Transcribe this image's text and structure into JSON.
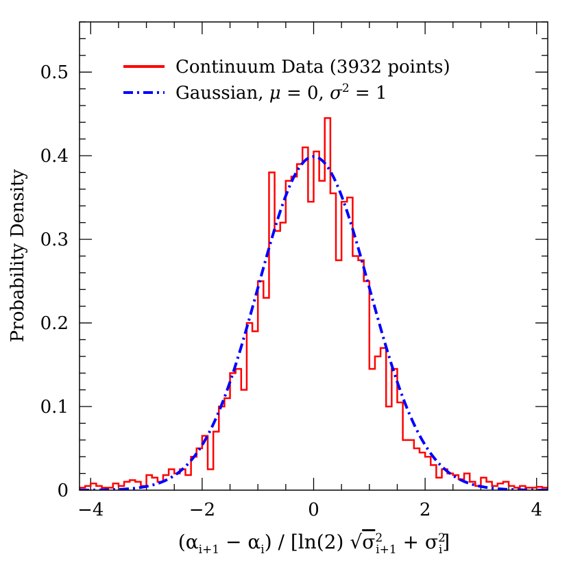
{
  "chart_data": {
    "type": "histogram",
    "xlabel_parts": {
      "open": "(α",
      "sub_i1": "i+1",
      "minus": " − α",
      "sub_i": "i",
      "mid": ") / [ln(2) ",
      "sqrt": "√",
      "sigma1": "σ",
      "sup_2a": "2",
      "sub_i1b": "i+1",
      "plus": " + σ",
      "sup_2b": "2",
      "sub_ib": "i",
      "close": "]"
    },
    "ylabel": "Probability Density",
    "xlim": [
      -4.2,
      4.2
    ],
    "ylim": [
      0,
      0.56
    ],
    "x_ticks": [
      -4,
      -2,
      0,
      2,
      4
    ],
    "x_tick_labels": [
      "−4",
      "−2",
      "0",
      "2",
      "4"
    ],
    "y_ticks": [
      0,
      0.1,
      0.2,
      0.3,
      0.4,
      0.5
    ],
    "y_tick_labels": [
      "0",
      "0.1",
      "0.2",
      "0.3",
      "0.4",
      "0.5"
    ],
    "legend_position": "top-left",
    "series": [
      {
        "name": "Continuum Data (3932 points)",
        "kind": "histogram",
        "color": "#ff0000",
        "bin_edges": [
          -4.2,
          -4.1,
          -4.0,
          -3.9,
          -3.8,
          -3.7,
          -3.6,
          -3.5,
          -3.4,
          -3.3,
          -3.2,
          -3.1,
          -3.0,
          -2.9,
          -2.8,
          -2.7,
          -2.6,
          -2.5,
          -2.4,
          -2.3,
          -2.2,
          -2.1,
          -2.0,
          -1.9,
          -1.8,
          -1.7,
          -1.6,
          -1.5,
          -1.4,
          -1.3,
          -1.2,
          -1.1,
          -1.0,
          -0.9,
          -0.8,
          -0.7,
          -0.6,
          -0.5,
          -0.4,
          -0.3,
          -0.2,
          -0.1,
          0.0,
          0.1,
          0.2,
          0.3,
          0.4,
          0.5,
          0.6,
          0.7,
          0.8,
          0.9,
          1.0,
          1.1,
          1.2,
          1.3,
          1.4,
          1.5,
          1.6,
          1.7,
          1.8,
          1.9,
          2.0,
          2.1,
          2.2,
          2.3,
          2.4,
          2.5,
          2.6,
          2.7,
          2.8,
          2.9,
          3.0,
          3.1,
          3.2,
          3.3,
          3.4,
          3.5,
          3.6,
          3.7,
          3.8,
          3.9,
          4.0,
          4.1,
          4.2
        ],
        "density": [
          0.003,
          0.005,
          0.008,
          0.005,
          0.003,
          0.003,
          0.008,
          0.005,
          0.01,
          0.012,
          0.01,
          0.005,
          0.018,
          0.015,
          0.01,
          0.018,
          0.025,
          0.02,
          0.025,
          0.018,
          0.04,
          0.05,
          0.065,
          0.025,
          0.07,
          0.1,
          0.11,
          0.14,
          0.145,
          0.12,
          0.2,
          0.19,
          0.25,
          0.23,
          0.38,
          0.31,
          0.32,
          0.37,
          0.375,
          0.39,
          0.41,
          0.345,
          0.405,
          0.37,
          0.445,
          0.355,
          0.275,
          0.345,
          0.35,
          0.28,
          0.275,
          0.25,
          0.145,
          0.16,
          0.17,
          0.1,
          0.145,
          0.105,
          0.06,
          0.06,
          0.05,
          0.045,
          0.04,
          0.03,
          0.015,
          0.025,
          0.02,
          0.018,
          0.013,
          0.02,
          0.01,
          0.005,
          0.015,
          0.01,
          0.005,
          0.008,
          0.01,
          0.005,
          0.003,
          0.005,
          0.003,
          0.003,
          0.004,
          0.003
        ]
      },
      {
        "name_parts": {
          "prefix": "Gaussian, ",
          "mu": "μ",
          "mid": " = 0, ",
          "sigma": "σ",
          "sup": "2",
          "end": " = 1"
        },
        "kind": "gaussian",
        "mean": 0,
        "variance": 1,
        "color": "#0000ff",
        "style": "dash-dot"
      }
    ]
  }
}
